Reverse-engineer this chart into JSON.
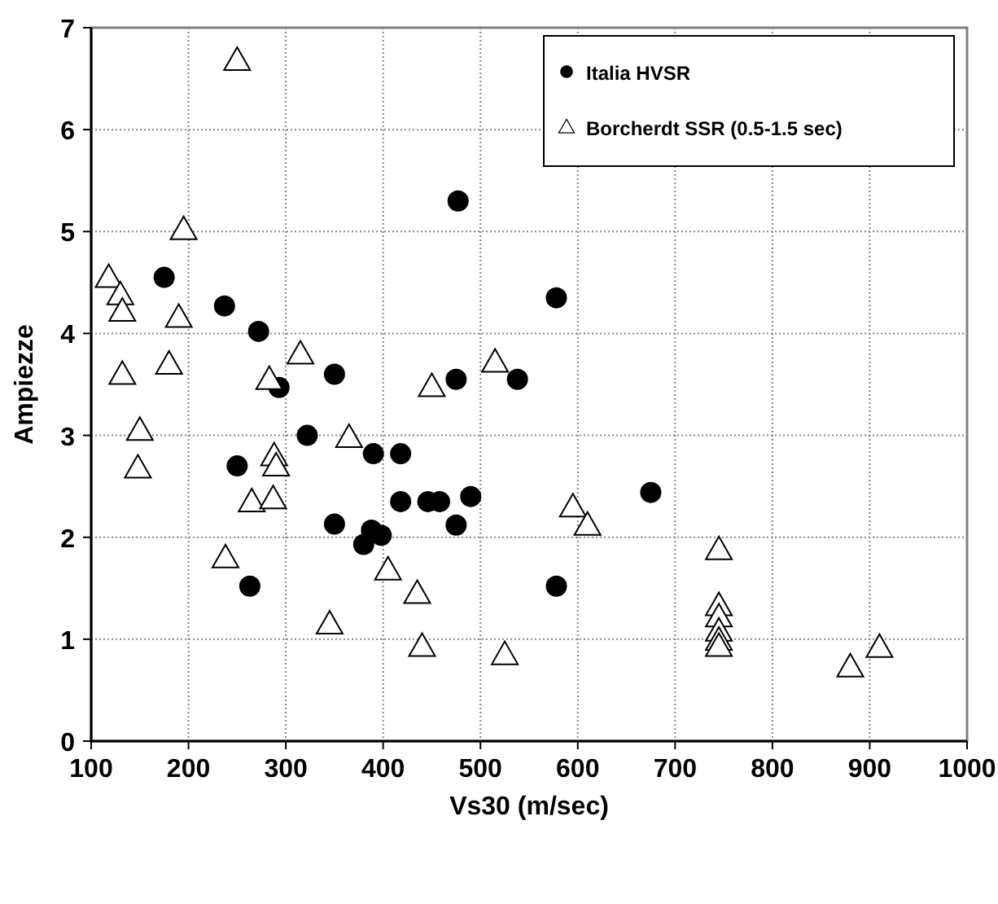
{
  "chart_data": {
    "type": "scatter",
    "xlabel": "Vs30 (m/sec)",
    "ylabel": "Ampiezze",
    "xlim": [
      100,
      1000
    ],
    "xticks": [
      100,
      200,
      300,
      400,
      500,
      600,
      700,
      800,
      900,
      1000
    ],
    "ylim": [
      0,
      7
    ],
    "yticks": [
      0,
      1,
      2,
      3,
      4,
      5,
      6,
      7
    ],
    "grid": true,
    "legend": "top right",
    "series": [
      {
        "name": "Italia HVSR",
        "color": "#000000",
        "marker": "circle",
        "x": [
          175,
          237,
          272,
          293,
          350,
          322,
          250,
          263,
          350,
          380,
          388,
          390,
          398,
          418,
          418,
          446,
          458,
          475,
          475,
          477,
          490,
          538,
          578,
          578,
          675
        ],
        "values": [
          4.55,
          4.27,
          4.02,
          3.47,
          3.6,
          3.0,
          2.7,
          1.52,
          2.13,
          1.93,
          2.07,
          2.82,
          2.02,
          2.35,
          2.82,
          2.35,
          2.35,
          3.55,
          2.12,
          5.3,
          2.4,
          3.55,
          4.35,
          1.52,
          2.44
        ]
      },
      {
        "name": "Borcherdt SSR (0.5-1.5 sec)",
        "color": "#000000",
        "marker": "triangle",
        "x": [
          118,
          130,
          132,
          132,
          150,
          148,
          180,
          190,
          195,
          250,
          238,
          265,
          283,
          288,
          290,
          287,
          315,
          345,
          365,
          405,
          435,
          440,
          450,
          515,
          525,
          595,
          610,
          745,
          745,
          745,
          745,
          745,
          745,
          880,
          910
        ],
        "values": [
          4.55,
          4.38,
          4.22,
          3.6,
          3.05,
          2.68,
          3.7,
          4.16,
          5.02,
          6.68,
          1.8,
          2.35,
          3.55,
          2.8,
          2.7,
          2.38,
          3.8,
          1.15,
          2.98,
          1.68,
          1.45,
          0.93,
          3.48,
          3.72,
          0.85,
          2.3,
          2.12,
          1.88,
          1.33,
          1.22,
          1.08,
          0.99,
          0.93,
          0.73,
          0.92
        ]
      }
    ]
  }
}
